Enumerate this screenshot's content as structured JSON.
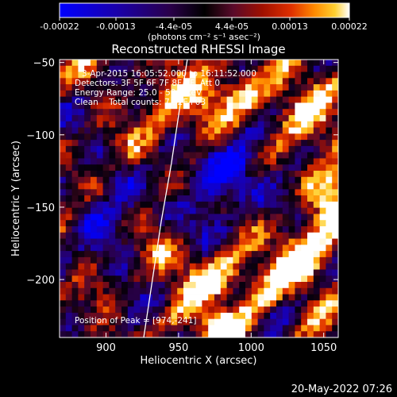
{
  "window": {
    "timestamp": "20-May-2022 07:26"
  },
  "colorbar": {
    "ticks": [
      "-0.00022",
      "-0.00013",
      "-4.4e-05",
      "4.4e-05",
      "0.00013",
      "0.00022"
    ],
    "unit_label": "(photons cm⁻² s⁻¹ asec⁻²)",
    "colors": [
      "#0000ff",
      "#1a00aa",
      "#2a004a",
      "#000000",
      "#5a0a2a",
      "#a01000",
      "#e03000",
      "#ff8a00",
      "#ffd030",
      "#ffffff"
    ]
  },
  "chart_data": {
    "type": "heatmap",
    "title": "Reconstructed RHESSI Image",
    "xlabel": "Heliocentric X (arcsec)",
    "ylabel": "Heliocentric Y (arcsec)",
    "xlim": [
      868,
      1060
    ],
    "ylim": [
      -240,
      -48
    ],
    "xticks": [
      900,
      950,
      1000,
      1050
    ],
    "yticks": [
      -50,
      -100,
      -150,
      -200
    ],
    "xtick_labels": [
      "900",
      "950",
      "1000",
      "1050"
    ],
    "ytick_labels": [
      "−50",
      "−100",
      "−150",
      "−200"
    ],
    "annotations": [
      "3-Apr-2015 16:05:52.000 to 16:11:52.000",
      "Detectors: 3F 5F 6F 7F 8F 9F, Att 0",
      "Energy Range: 25.0 - 50.0 keV",
      "Clean    Total counts: 7.32E+03"
    ],
    "peak_label": "Position of Peak = [974,-241]",
    "peak_position": [
      974,
      -241
    ],
    "limb_curve": [
      [
        926,
        -240
      ],
      [
        932,
        -200
      ],
      [
        938,
        -160
      ],
      [
        945,
        -120
      ],
      [
        951,
        -80
      ],
      [
        956,
        -48
      ]
    ],
    "value_range": [
      -0.00022,
      0.00022
    ],
    "grid": false,
    "palette_note": "diverging blue-purple-black-red-orange-yellow-white"
  }
}
